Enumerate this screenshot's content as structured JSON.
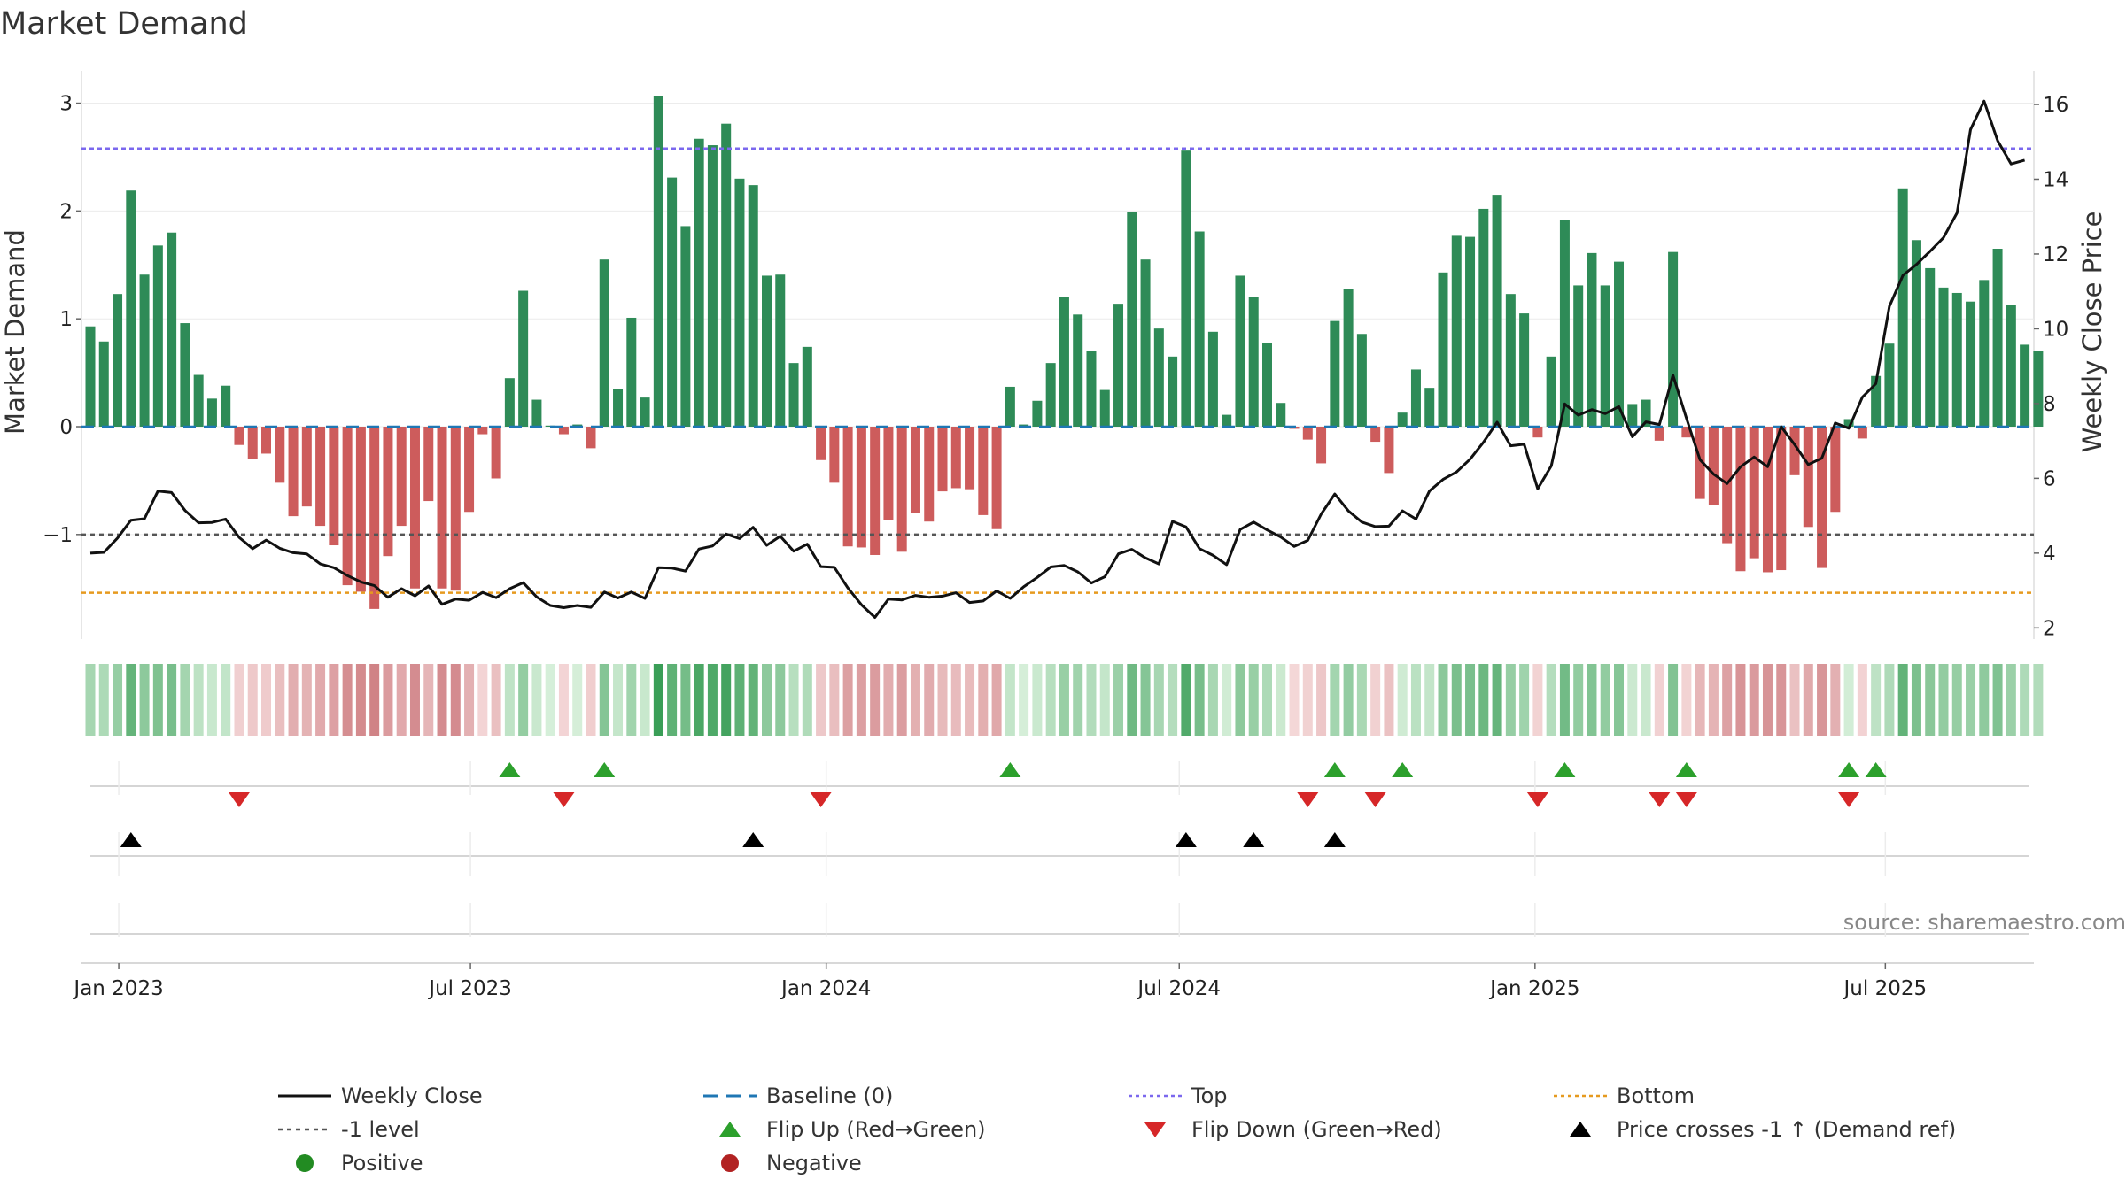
{
  "chart_data": {
    "type": "bar",
    "title": "Market Demand",
    "ylabel_left": "Market Demand",
    "ylabel_right": "Weekly Close Price",
    "source": "source: sharemaestro.com",
    "left_ylim": [
      -1.97,
      3.3
    ],
    "right_ylim": [
      1.7,
      16.9
    ],
    "left_ticks": [
      3,
      2,
      1,
      0,
      -1
    ],
    "left_tick_labels": [
      "3",
      "2",
      "1",
      "0",
      "−1"
    ],
    "right_ticks": [
      16,
      14,
      12,
      10,
      8,
      6,
      4,
      2
    ],
    "right_tick_labels": [
      "16",
      "14",
      "12",
      "10",
      "8",
      "6",
      "4",
      "2"
    ],
    "x_ticks": [
      {
        "label": "Jan 2023",
        "week": 2.1
      },
      {
        "label": "Jul 2023",
        "week": 28.1
      },
      {
        "label": "Jan 2024",
        "week": 54.4
      },
      {
        "label": "Jul 2024",
        "week": 80.5
      },
      {
        "label": "Jan 2025",
        "week": 106.8
      },
      {
        "label": "Jul 2025",
        "week": 132.7
      }
    ],
    "reference_lines": {
      "top": 2.58,
      "bottom": -1.54,
      "minus_one": -1,
      "baseline": 0
    },
    "demand": [
      0.93,
      0.79,
      1.23,
      2.19,
      1.41,
      1.68,
      1.8,
      0.96,
      0.48,
      0.26,
      0.38,
      -0.17,
      -0.3,
      -0.25,
      -0.52,
      -0.83,
      -0.74,
      -0.92,
      -1.1,
      -1.47,
      -1.53,
      -1.69,
      -1.2,
      -0.92,
      -1.5,
      -0.69,
      -1.5,
      -1.52,
      -0.79,
      -0.07,
      -0.48,
      0.45,
      1.26,
      0.25,
      0.01,
      -0.07,
      0.02,
      -0.2,
      1.55,
      0.35,
      1.01,
      0.27,
      3.07,
      2.31,
      1.86,
      2.67,
      2.61,
      2.81,
      2.3,
      2.24,
      1.4,
      1.41,
      0.59,
      0.74,
      -0.31,
      -0.52,
      -1.11,
      -1.12,
      -1.19,
      -0.87,
      -1.16,
      -0.8,
      -0.88,
      -0.6,
      -0.57,
      -0.58,
      -0.82,
      -0.95,
      0.37,
      0.02,
      0.24,
      0.59,
      1.2,
      1.04,
      0.7,
      0.34,
      1.14,
      1.99,
      1.55,
      0.91,
      0.65,
      2.56,
      1.81,
      0.88,
      0.11,
      1.4,
      1.2,
      0.78,
      0.22,
      -0.02,
      -0.12,
      -0.34,
      0.98,
      1.28,
      0.86,
      -0.14,
      -0.43,
      0.13,
      0.53,
      0.36,
      1.43,
      1.77,
      1.76,
      2.02,
      2.15,
      1.23,
      1.05,
      -0.1,
      0.65,
      1.92,
      1.31,
      1.61,
      1.31,
      1.53,
      0.21,
      0.25,
      -0.13,
      1.62,
      -0.1,
      -0.67,
      -0.73,
      -1.08,
      -1.34,
      -1.22,
      -1.35,
      -1.33,
      -0.45,
      -0.93,
      -1.31,
      -0.79,
      0.07,
      -0.11,
      0.47,
      0.77,
      2.21,
      1.73,
      1.47,
      1.29,
      1.24,
      1.16,
      1.36,
      1.65,
      1.13,
      0.76,
      0.7
    ],
    "weekly_close": [
      4.0,
      4.02,
      4.4,
      4.88,
      4.92,
      5.66,
      5.62,
      5.14,
      4.81,
      4.82,
      4.91,
      4.42,
      4.12,
      4.35,
      4.13,
      4.01,
      3.98,
      3.71,
      3.61,
      3.4,
      3.23,
      3.13,
      2.82,
      3.05,
      2.86,
      3.12,
      2.63,
      2.77,
      2.74,
      2.95,
      2.81,
      3.05,
      3.21,
      2.83,
      2.6,
      2.54,
      2.6,
      2.55,
      2.96,
      2.8,
      2.96,
      2.79,
      3.61,
      3.6,
      3.52,
      4.11,
      4.19,
      4.51,
      4.39,
      4.69,
      4.21,
      4.45,
      4.05,
      4.24,
      3.64,
      3.62,
      3.07,
      2.62,
      2.28,
      2.77,
      2.75,
      2.87,
      2.82,
      2.85,
      2.94,
      2.68,
      2.72,
      2.99,
      2.79,
      3.1,
      3.35,
      3.63,
      3.67,
      3.5,
      3.2,
      3.37,
      3.98,
      4.1,
      3.87,
      3.71,
      4.85,
      4.7,
      4.12,
      3.94,
      3.69,
      4.63,
      4.83,
      4.62,
      4.43,
      4.18,
      4.34,
      5.05,
      5.58,
      5.13,
      4.83,
      4.71,
      4.72,
      5.13,
      4.91,
      5.66,
      5.97,
      6.17,
      6.51,
      6.97,
      7.5,
      6.87,
      6.91,
      5.72,
      6.33,
      7.99,
      7.69,
      7.84,
      7.73,
      7.92,
      7.11,
      7.51,
      7.44,
      8.76,
      7.6,
      6.5,
      6.11,
      5.86,
      6.31,
      6.57,
      6.31,
      7.38,
      6.9,
      6.37,
      6.54,
      7.48,
      7.34,
      8.17,
      8.53,
      10.6,
      11.43,
      11.72,
      12.07,
      12.44,
      13.1,
      15.33,
      16.09,
      15.03,
      14.41,
      14.51
    ],
    "flip_up_weeks": [
      31,
      38,
      68,
      92,
      97,
      109,
      118,
      130,
      132
    ],
    "flip_down_weeks": [
      11,
      35,
      54,
      90,
      95,
      107,
      116,
      118,
      130
    ],
    "price_cross_weeks": [
      3,
      49,
      81,
      86,
      92
    ]
  },
  "legend": {
    "weekly_close": "Weekly Close",
    "baseline": "Baseline (0)",
    "top": "Top",
    "bottom": "Bottom",
    "minus_one_level": "-1 level",
    "flip_up": "Flip Up (Red→Green)",
    "flip_down": "Flip Down (Green→Red)",
    "price_cross": "Price crosses -1 ↑ (Demand ref)",
    "positive": "Positive",
    "negative": "Negative"
  },
  "colors": {
    "positive_bar": "#2e8b57",
    "negative_bar": "#cd5c5c",
    "line": "#111111",
    "top": "#7b68ee",
    "bottom": "#e69a1f",
    "minus_one": "#555555",
    "baseline": "#1f77b4",
    "flip_up": "#2ca02c",
    "flip_down": "#d62728",
    "cross": "#000000",
    "positive_dot": "#228b22",
    "negative_dot": "#b22222"
  }
}
